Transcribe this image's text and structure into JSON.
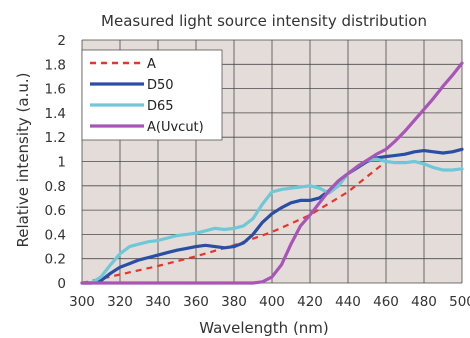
{
  "chart_data": {
    "type": "line",
    "title": "Measured light source intensity distribution",
    "xlabel": "Wavelength (nm)",
    "ylabel": "Relative intensity (a.u.)",
    "xlim": [
      300,
      500
    ],
    "ylim": [
      0,
      2
    ],
    "xticks": [
      "300",
      "320",
      "340",
      "360",
      "380",
      "400",
      "420",
      "440",
      "460",
      "480",
      "500"
    ],
    "yticks": [
      "0",
      "0.2",
      "0.4",
      "0.6",
      "0.8",
      "1",
      "1.2",
      "1.4",
      "1.6",
      "1.8",
      "2"
    ],
    "grid": true,
    "legend_position": "top-left",
    "plot_background": "#e4dcd8",
    "series": [
      {
        "name": "A",
        "color": "#e8352a",
        "dash": "dashed",
        "x": [
          300,
          320,
          340,
          360,
          380,
          400,
          420,
          440,
          460
        ],
        "y": [
          0.0,
          0.07,
          0.14,
          0.22,
          0.31,
          0.42,
          0.56,
          0.75,
          1.0
        ]
      },
      {
        "name": "D50",
        "color": "#2a4ea3",
        "dash": "solid",
        "x": [
          300,
          305,
          310,
          315,
          320,
          325,
          330,
          335,
          340,
          345,
          350,
          355,
          360,
          365,
          370,
          375,
          380,
          385,
          390,
          395,
          400,
          405,
          410,
          415,
          420,
          425,
          430,
          435,
          440,
          445,
          450,
          455,
          460,
          465,
          470,
          475,
          480,
          485,
          490,
          495,
          500
        ],
        "y": [
          0.0,
          0.0,
          0.02,
          0.08,
          0.13,
          0.16,
          0.19,
          0.21,
          0.23,
          0.25,
          0.27,
          0.285,
          0.3,
          0.31,
          0.3,
          0.29,
          0.3,
          0.33,
          0.4,
          0.5,
          0.57,
          0.62,
          0.66,
          0.68,
          0.68,
          0.7,
          0.76,
          0.84,
          0.9,
          0.95,
          1.0,
          1.03,
          1.04,
          1.05,
          1.06,
          1.08,
          1.09,
          1.08,
          1.07,
          1.08,
          1.1
        ]
      },
      {
        "name": "D65",
        "color": "#6fc8d8",
        "dash": "solid",
        "x": [
          300,
          305,
          310,
          315,
          320,
          325,
          330,
          335,
          340,
          345,
          350,
          355,
          360,
          365,
          370,
          375,
          380,
          385,
          390,
          395,
          400,
          405,
          410,
          415,
          420,
          425,
          430,
          435,
          440,
          445,
          450,
          455,
          460,
          465,
          470,
          475,
          480,
          485,
          490,
          495,
          500
        ],
        "y": [
          0.0,
          0.0,
          0.05,
          0.15,
          0.24,
          0.3,
          0.32,
          0.34,
          0.35,
          0.37,
          0.39,
          0.4,
          0.41,
          0.43,
          0.45,
          0.44,
          0.45,
          0.47,
          0.53,
          0.65,
          0.75,
          0.77,
          0.78,
          0.79,
          0.8,
          0.78,
          0.74,
          0.8,
          0.9,
          0.96,
          1.01,
          1.02,
          1.0,
          0.99,
          0.99,
          1.0,
          0.98,
          0.95,
          0.93,
          0.93,
          0.94
        ]
      },
      {
        "name": "A(Uvcut)",
        "color": "#a955b8",
        "dash": "solid",
        "x": [
          300,
          390,
          395,
          400,
          405,
          410,
          415,
          420,
          425,
          430,
          435,
          440,
          445,
          450,
          455,
          460,
          465,
          470,
          475,
          480,
          485,
          490,
          495,
          500
        ],
        "y": [
          0.0,
          0.0,
          0.01,
          0.05,
          0.15,
          0.32,
          0.47,
          0.56,
          0.66,
          0.76,
          0.84,
          0.9,
          0.96,
          1.01,
          1.06,
          1.1,
          1.17,
          1.25,
          1.34,
          1.43,
          1.52,
          1.62,
          1.71,
          1.81
        ]
      }
    ]
  }
}
